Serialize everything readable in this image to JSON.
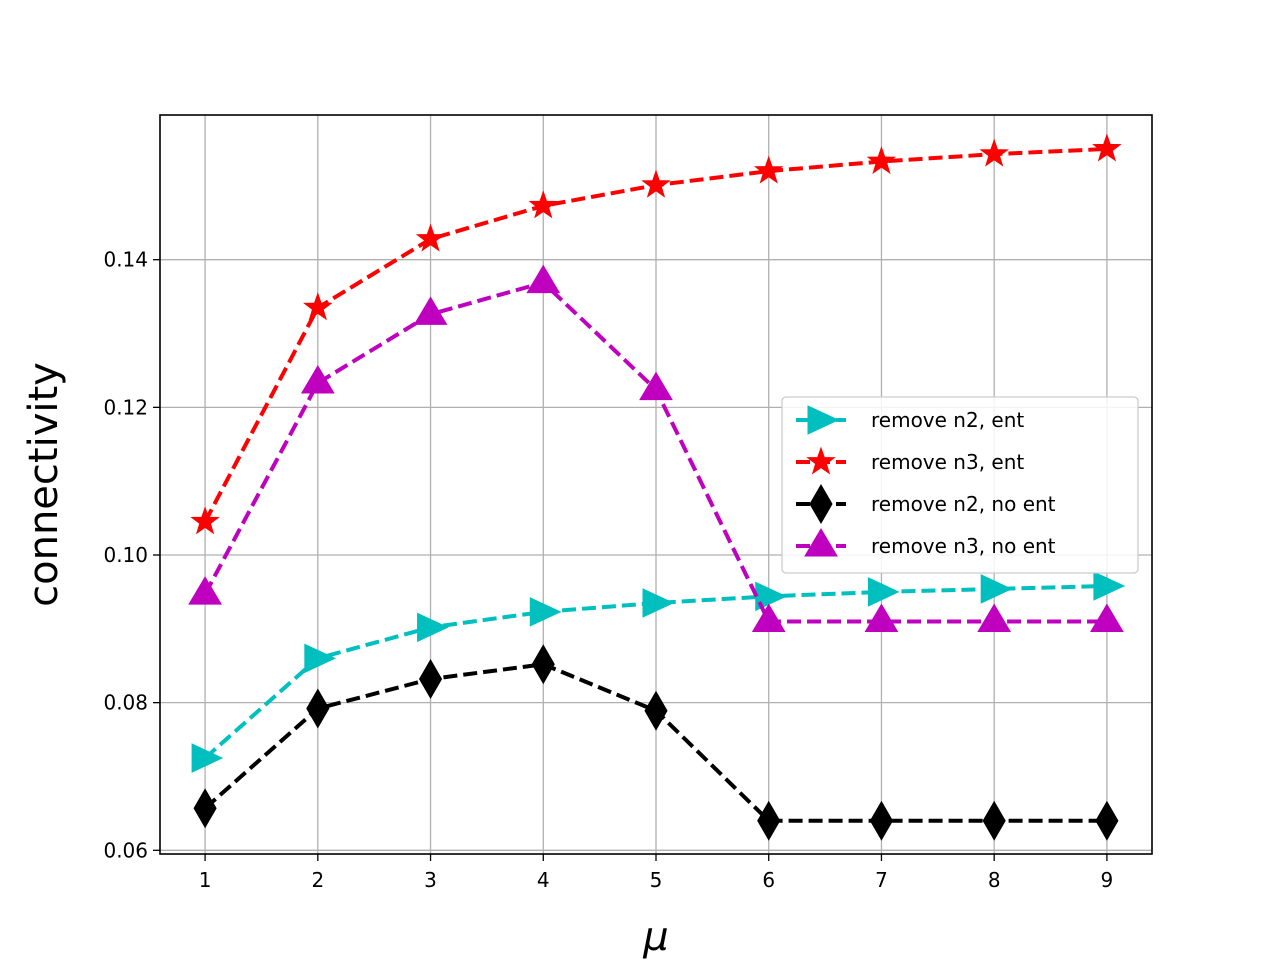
{
  "chart_data": {
    "type": "line",
    "title": "",
    "xlabel": "μ",
    "ylabel": "connectivity",
    "x": [
      1,
      2,
      3,
      4,
      5,
      6,
      7,
      8,
      9
    ],
    "xlim": [
      0.6,
      9.4
    ],
    "ylim": [
      0.0595,
      0.1596
    ],
    "xticks": [
      "1",
      "2",
      "3",
      "4",
      "5",
      "6",
      "7",
      "8",
      "9"
    ],
    "yticks": [
      "0.06",
      "0.08",
      "0.10",
      "0.12",
      "0.14"
    ],
    "grid": true,
    "legend_position": "center-right",
    "series": [
      {
        "name": "remove n2, ent",
        "color": "#00bfbf",
        "marker": "triangle-right",
        "linestyle": "dashed",
        "values": [
          0.0725,
          0.086,
          0.0902,
          0.0923,
          0.0935,
          0.0944,
          0.095,
          0.0954,
          0.0958
        ]
      },
      {
        "name": "remove n3, ent",
        "color": "#ff0000",
        "marker": "star",
        "linestyle": "dashed",
        "values": [
          0.1045,
          0.1335,
          0.1428,
          0.1473,
          0.1501,
          0.152,
          0.1533,
          0.1543,
          0.155
        ]
      },
      {
        "name": "remove n2, no ent",
        "color": "#000000",
        "marker": "thin-diamond",
        "linestyle": "dashed",
        "values": [
          0.0657,
          0.0792,
          0.0832,
          0.0852,
          0.0789,
          0.064,
          0.064,
          0.064,
          0.064
        ]
      },
      {
        "name": "remove n3, no ent",
        "color": "#bf00bf",
        "marker": "triangle-up",
        "linestyle": "dashed",
        "values": [
          0.0947,
          0.1233,
          0.1326,
          0.1369,
          0.1224,
          0.091,
          0.091,
          0.091,
          0.091
        ]
      }
    ]
  }
}
